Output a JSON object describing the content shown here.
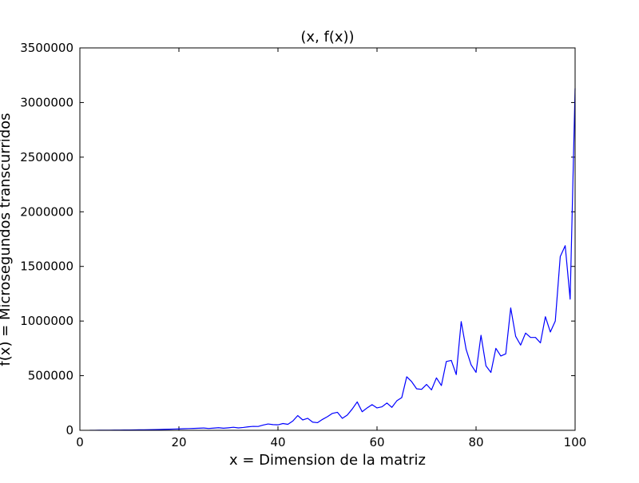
{
  "chart_data": {
    "type": "line",
    "title": "(x, f(x))",
    "xlabel": "x = Dimension de la matriz",
    "ylabel": "f(x) = Microsegundos transcurridos",
    "xlim": [
      0,
      100
    ],
    "ylim": [
      0,
      3500000
    ],
    "xticks": [
      0,
      20,
      40,
      60,
      80,
      100
    ],
    "yticks": [
      0,
      500000,
      1000000,
      1500000,
      2000000,
      2500000,
      3000000,
      3500000
    ],
    "xtick_labels": [
      "0",
      "20",
      "40",
      "60",
      "80",
      "100"
    ],
    "ytick_labels": [
      "0",
      "500000",
      "1000000",
      "1500000",
      "2000000",
      "2500000",
      "3000000",
      "3500000"
    ],
    "grid": false,
    "series": [
      {
        "color": "#0000ff",
        "x": [
          2,
          3,
          4,
          5,
          6,
          7,
          8,
          9,
          10,
          11,
          12,
          13,
          14,
          15,
          16,
          17,
          18,
          19,
          20,
          21,
          22,
          23,
          24,
          25,
          26,
          27,
          28,
          29,
          30,
          31,
          32,
          33,
          34,
          35,
          36,
          37,
          38,
          39,
          40,
          41,
          42,
          43,
          44,
          45,
          46,
          47,
          48,
          49,
          50,
          51,
          52,
          53,
          54,
          55,
          56,
          57,
          58,
          59,
          60,
          61,
          62,
          63,
          64,
          65,
          66,
          67,
          68,
          69,
          70,
          71,
          72,
          73,
          74,
          75,
          76,
          77,
          78,
          79,
          80,
          81,
          82,
          83,
          84,
          85,
          86,
          87,
          88,
          89,
          90,
          91,
          92,
          93,
          94,
          95,
          96,
          97,
          98,
          99,
          100
        ],
        "values": [
          500,
          600,
          800,
          1000,
          1300,
          1600,
          2000,
          2500,
          3000,
          3600,
          4300,
          5000,
          5900,
          6800,
          7800,
          8900,
          10000,
          11500,
          13000,
          14500,
          16000,
          17500,
          19000,
          21000,
          17000,
          20000,
          24000,
          19000,
          23000,
          28000,
          22000,
          26000,
          32000,
          36000,
          35000,
          48000,
          58000,
          52000,
          50000,
          62000,
          55000,
          85000,
          135000,
          95000,
          110000,
          75000,
          70000,
          100000,
          125000,
          155000,
          165000,
          110000,
          140000,
          195000,
          260000,
          170000,
          205000,
          235000,
          205000,
          215000,
          250000,
          210000,
          270000,
          300000,
          490000,
          445000,
          380000,
          375000,
          420000,
          370000,
          480000,
          410000,
          630000,
          640000,
          510000,
          995000,
          740000,
          600000,
          530000,
          870000,
          590000,
          530000,
          750000,
          680000,
          700000,
          1120000,
          860000,
          780000,
          890000,
          850000,
          850000,
          800000,
          1040000,
          900000,
          1000000,
          1590000,
          1690000,
          1200000,
          3130000
        ]
      }
    ]
  }
}
